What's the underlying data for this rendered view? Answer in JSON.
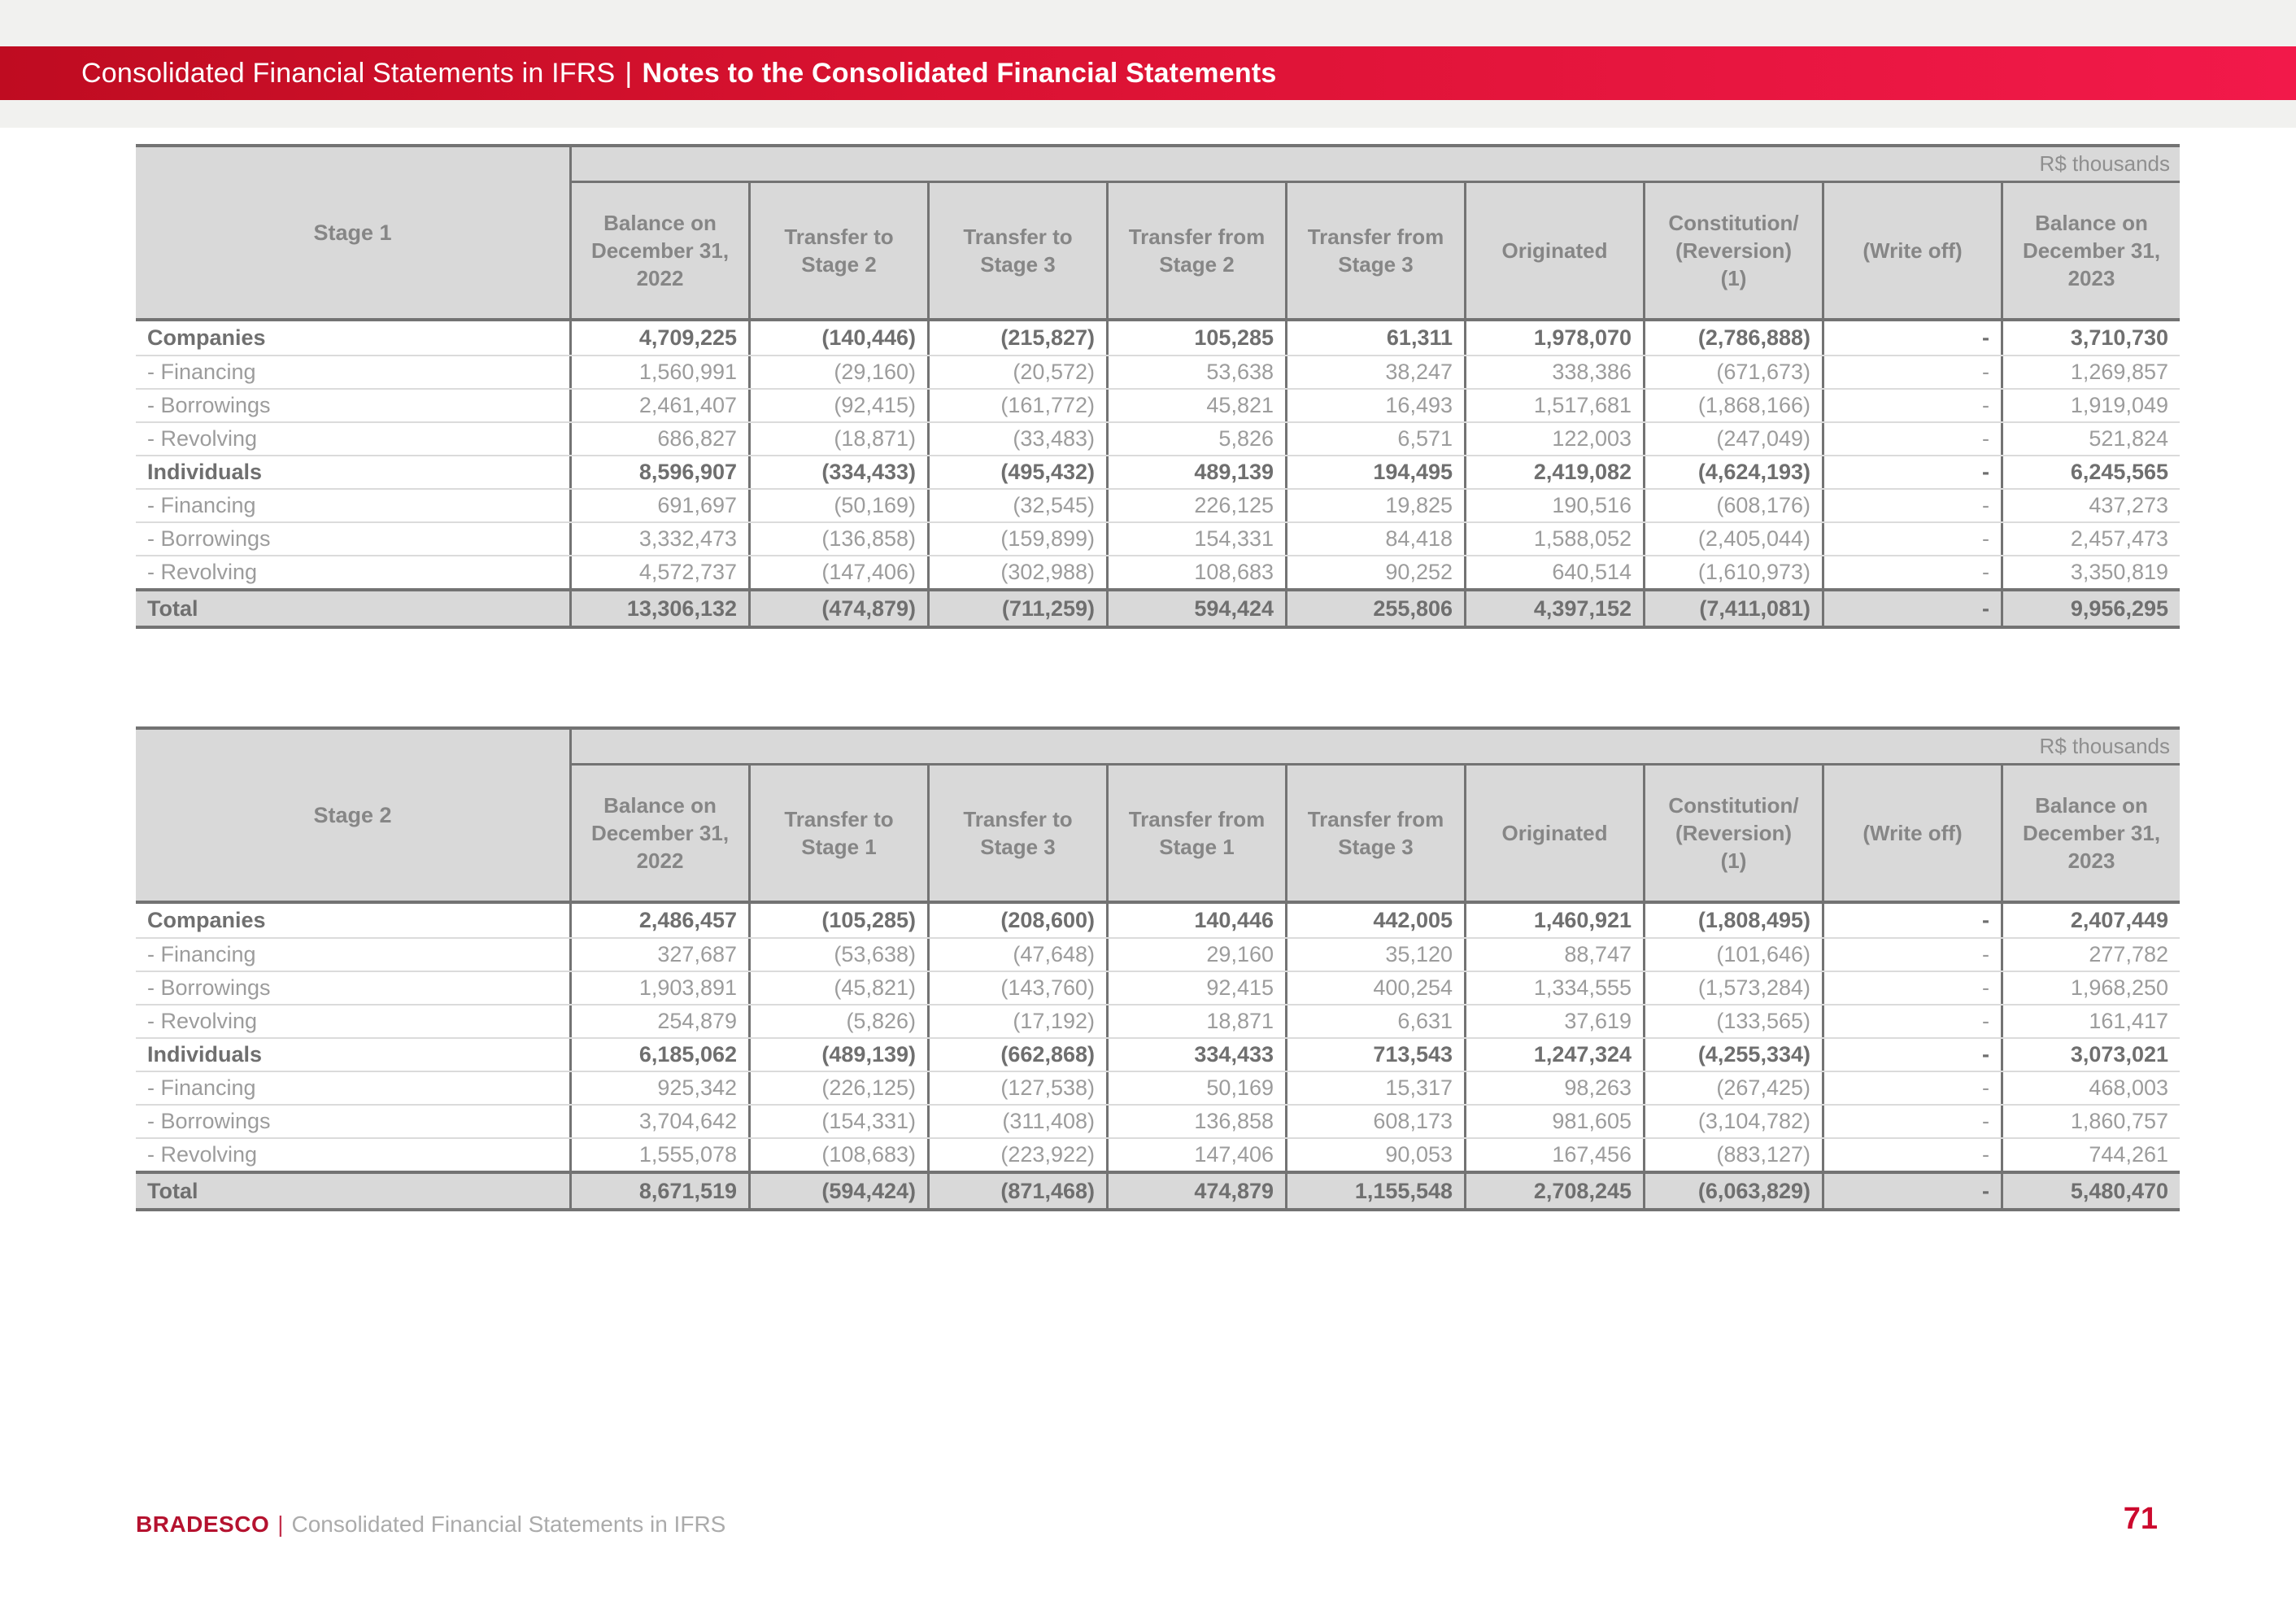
{
  "banner": {
    "title_regular": "Consolidated Financial Statements in IFRS",
    "separator": "|",
    "title_bold": "Notes to the Consolidated Financial Statements"
  },
  "tables": [
    {
      "stage_label": "Stage 1",
      "unit_label": "R$ thousands",
      "columns": [
        "Balance on\nDecember 31,\n2022",
        "Transfer to\nStage 2",
        "Transfer to\nStage 3",
        "Transfer from\nStage 2",
        "Transfer from\nStage 3",
        "Originated",
        "Constitution/\n(Reversion)\n(1)",
        "(Write off)",
        "Balance on\nDecember 31,\n2023"
      ],
      "rows": [
        {
          "type": "category",
          "label": "Companies",
          "values": [
            "4,709,225",
            "(140,446)",
            "(215,827)",
            "105,285",
            "61,311",
            "1,978,070",
            "(2,786,888)",
            "-",
            "3,710,730"
          ]
        },
        {
          "type": "sub",
          "label": "- Financing",
          "values": [
            "1,560,991",
            "(29,160)",
            "(20,572)",
            "53,638",
            "38,247",
            "338,386",
            "(671,673)",
            "-",
            "1,269,857"
          ]
        },
        {
          "type": "sub",
          "label": "- Borrowings",
          "values": [
            "2,461,407",
            "(92,415)",
            "(161,772)",
            "45,821",
            "16,493",
            "1,517,681",
            "(1,868,166)",
            "-",
            "1,919,049"
          ]
        },
        {
          "type": "sub",
          "label": "- Revolving",
          "values": [
            "686,827",
            "(18,871)",
            "(33,483)",
            "5,826",
            "6,571",
            "122,003",
            "(247,049)",
            "-",
            "521,824"
          ]
        },
        {
          "type": "category",
          "label": "Individuals",
          "values": [
            "8,596,907",
            "(334,433)",
            "(495,432)",
            "489,139",
            "194,495",
            "2,419,082",
            "(4,624,193)",
            "-",
            "6,245,565"
          ]
        },
        {
          "type": "sub",
          "label": "- Financing",
          "values": [
            "691,697",
            "(50,169)",
            "(32,545)",
            "226,125",
            "19,825",
            "190,516",
            "(608,176)",
            "-",
            "437,273"
          ]
        },
        {
          "type": "sub",
          "label": "- Borrowings",
          "values": [
            "3,332,473",
            "(136,858)",
            "(159,899)",
            "154,331",
            "84,418",
            "1,588,052",
            "(2,405,044)",
            "-",
            "2,457,473"
          ]
        },
        {
          "type": "sub",
          "label": "- Revolving",
          "values": [
            "4,572,737",
            "(147,406)",
            "(302,988)",
            "108,683",
            "90,252",
            "640,514",
            "(1,610,973)",
            "-",
            "3,350,819"
          ]
        },
        {
          "type": "total",
          "label": "Total",
          "values": [
            "13,306,132",
            "(474,879)",
            "(711,259)",
            "594,424",
            "255,806",
            "4,397,152",
            "(7,411,081)",
            "-",
            "9,956,295"
          ]
        }
      ]
    },
    {
      "stage_label": "Stage 2",
      "unit_label": "R$ thousands",
      "columns": [
        "Balance on\nDecember 31,\n2022",
        "Transfer to\nStage 1",
        "Transfer to\nStage 3",
        "Transfer from\nStage 1",
        "Transfer from\nStage 3",
        "Originated",
        "Constitution/\n(Reversion)\n(1)",
        "(Write off)",
        "Balance on\nDecember 31,\n2023"
      ],
      "rows": [
        {
          "type": "category",
          "label": "Companies",
          "values": [
            "2,486,457",
            "(105,285)",
            "(208,600)",
            "140,446",
            "442,005",
            "1,460,921",
            "(1,808,495)",
            "-",
            "2,407,449"
          ]
        },
        {
          "type": "sub",
          "label": "- Financing",
          "values": [
            "327,687",
            "(53,638)",
            "(47,648)",
            "29,160",
            "35,120",
            "88,747",
            "(101,646)",
            "-",
            "277,782"
          ]
        },
        {
          "type": "sub",
          "label": "- Borrowings",
          "values": [
            "1,903,891",
            "(45,821)",
            "(143,760)",
            "92,415",
            "400,254",
            "1,334,555",
            "(1,573,284)",
            "-",
            "1,968,250"
          ]
        },
        {
          "type": "sub",
          "label": "- Revolving",
          "values": [
            "254,879",
            "(5,826)",
            "(17,192)",
            "18,871",
            "6,631",
            "37,619",
            "(133,565)",
            "-",
            "161,417"
          ]
        },
        {
          "type": "category",
          "label": "Individuals",
          "values": [
            "6,185,062",
            "(489,139)",
            "(662,868)",
            "334,433",
            "713,543",
            "1,247,324",
            "(4,255,334)",
            "-",
            "3,073,021"
          ]
        },
        {
          "type": "sub",
          "label": "- Financing",
          "values": [
            "925,342",
            "(226,125)",
            "(127,538)",
            "50,169",
            "15,317",
            "98,263",
            "(267,425)",
            "-",
            "468,003"
          ]
        },
        {
          "type": "sub",
          "label": "- Borrowings",
          "values": [
            "3,704,642",
            "(154,331)",
            "(311,408)",
            "136,858",
            "608,173",
            "981,605",
            "(3,104,782)",
            "-",
            "1,860,757"
          ]
        },
        {
          "type": "sub",
          "label": "- Revolving",
          "values": [
            "1,555,078",
            "(108,683)",
            "(223,922)",
            "147,406",
            "90,053",
            "167,456",
            "(883,127)",
            "-",
            "744,261"
          ]
        },
        {
          "type": "total",
          "label": "Total",
          "values": [
            "8,671,519",
            "(594,424)",
            "(871,468)",
            "474,879",
            "1,155,548",
            "2,708,245",
            "(6,063,829)",
            "-",
            "5,480,470"
          ]
        }
      ]
    }
  ],
  "footer": {
    "brand": "BRADESCO",
    "separator": "|",
    "document_title": "Consolidated Financial Statements in IFRS",
    "page_number": "71"
  },
  "colors": {
    "banner_red_left": "#bf0c21",
    "banner_red_right": "#f2194a",
    "brand_red": "#b5122f",
    "page_number_red": "#cc0a2e",
    "header_gray": "#d9d9d9",
    "border_dark": "#737373"
  }
}
